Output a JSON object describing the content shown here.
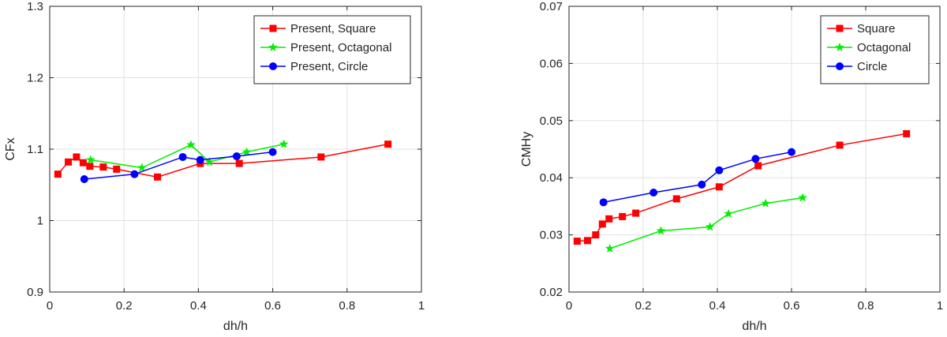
{
  "chart_data": [
    {
      "type": "line",
      "title": "",
      "xlabel": "dh/h",
      "ylabel": "CFx",
      "xlim": [
        0,
        1
      ],
      "ylim": [
        0.9,
        1.3
      ],
      "xticks": [
        0,
        0.2,
        0.4,
        0.6,
        0.8,
        1
      ],
      "xtick_labels": [
        "0",
        "0.2",
        "0.4",
        "0.6",
        "0.8",
        "1"
      ],
      "yticks": [
        0.9,
        1.0,
        1.1,
        1.2,
        1.3
      ],
      "ytick_labels": [
        "0.9",
        "1",
        "1.1",
        "1.2",
        "1.3"
      ],
      "grid": true,
      "legend_position": "top-right",
      "series": [
        {
          "name": "Present, Square",
          "color": "#ff0000",
          "marker": "square",
          "x": [
            0.022,
            0.05,
            0.072,
            0.09,
            0.108,
            0.144,
            0.18,
            0.29,
            0.405,
            0.51,
            0.73,
            0.91
          ],
          "y": [
            1.065,
            1.082,
            1.089,
            1.081,
            1.076,
            1.075,
            1.072,
            1.061,
            1.08,
            1.08,
            1.089,
            1.107
          ]
        },
        {
          "name": "Present, Octagonal",
          "color": "#00ee00",
          "marker": "star",
          "x": [
            0.11,
            0.248,
            0.38,
            0.43,
            0.53,
            0.63
          ],
          "y": [
            1.085,
            1.074,
            1.106,
            1.082,
            1.096,
            1.107
          ]
        },
        {
          "name": "Present, Circle",
          "color": "#0000ff",
          "marker": "circle",
          "x": [
            0.093,
            0.228,
            0.358,
            0.405,
            0.503,
            0.6
          ],
          "y": [
            1.058,
            1.065,
            1.089,
            1.085,
            1.09,
            1.096
          ]
        }
      ]
    },
    {
      "type": "line",
      "title": "",
      "xlabel": "dh/h",
      "ylabel": "CMHy",
      "xlim": [
        0,
        1
      ],
      "ylim": [
        0.02,
        0.07
      ],
      "xticks": [
        0,
        0.2,
        0.4,
        0.6,
        0.8,
        1
      ],
      "xtick_labels": [
        "0",
        "0.2",
        "0.4",
        "0.6",
        "0.8",
        "1"
      ],
      "yticks": [
        0.02,
        0.03,
        0.04,
        0.05,
        0.06,
        0.07
      ],
      "ytick_labels": [
        "0.02",
        "0.03",
        "0.04",
        "0.05",
        "0.06",
        "0.07"
      ],
      "grid": true,
      "legend_position": "top-right",
      "series": [
        {
          "name": "Square",
          "color": "#ff0000",
          "marker": "square",
          "x": [
            0.022,
            0.05,
            0.072,
            0.09,
            0.108,
            0.144,
            0.18,
            0.29,
            0.405,
            0.51,
            0.73,
            0.91
          ],
          "y": [
            0.0289,
            0.029,
            0.03,
            0.0319,
            0.0328,
            0.0332,
            0.0338,
            0.0363,
            0.0384,
            0.0421,
            0.0457,
            0.0477
          ]
        },
        {
          "name": "Octagonal",
          "color": "#00ee00",
          "marker": "star",
          "x": [
            0.11,
            0.248,
            0.38,
            0.43,
            0.53,
            0.63
          ],
          "y": [
            0.0276,
            0.0307,
            0.0314,
            0.0337,
            0.0355,
            0.0365
          ]
        },
        {
          "name": "Circle",
          "color": "#0000ff",
          "marker": "circle",
          "x": [
            0.093,
            0.228,
            0.358,
            0.405,
            0.503,
            0.6
          ],
          "y": [
            0.0357,
            0.0374,
            0.0388,
            0.0413,
            0.0433,
            0.0445
          ]
        }
      ]
    }
  ]
}
